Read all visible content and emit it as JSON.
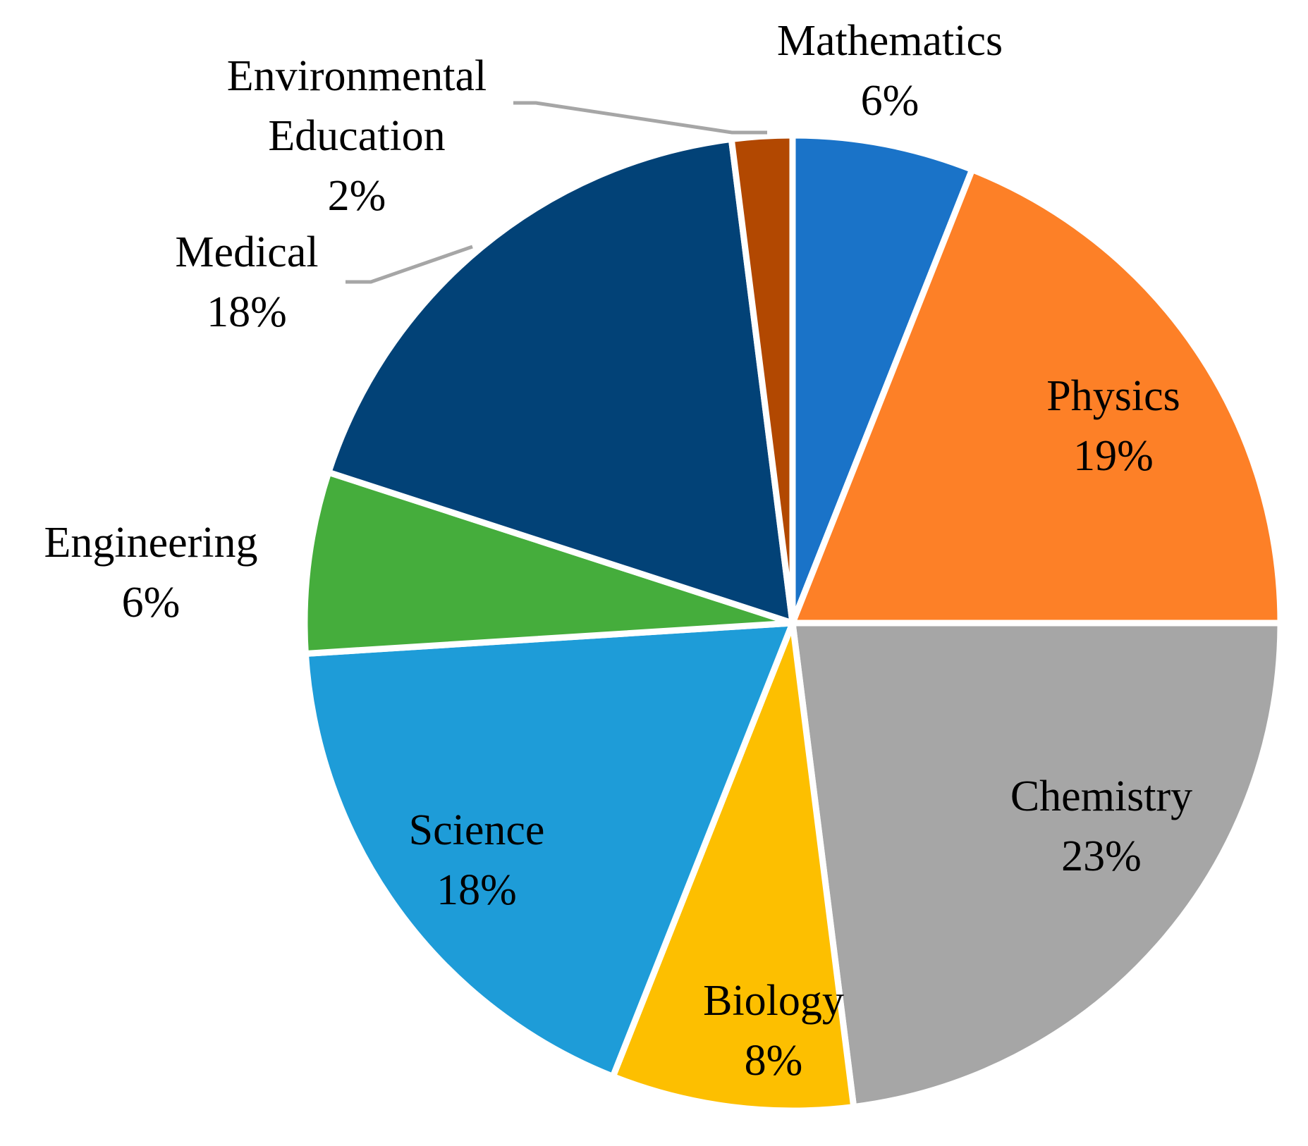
{
  "chart_data": {
    "type": "pie",
    "title": "",
    "start": "top",
    "direction": "clockwise",
    "slices": [
      {
        "label": "Mathematics",
        "value": 6,
        "pct_label": "6%",
        "color": "#1a73c8"
      },
      {
        "label": "Physics",
        "value": 19,
        "pct_label": "19%",
        "color": "#fd8027"
      },
      {
        "label": "Chemistry",
        "value": 23,
        "pct_label": "23%",
        "color": "#a6a6a6"
      },
      {
        "label": "Biology",
        "value": 8,
        "pct_label": "8%",
        "color": "#fdbf00"
      },
      {
        "label": "Science",
        "value": 18,
        "pct_label": "18%",
        "color": "#1e9cd8"
      },
      {
        "label": "Engineering",
        "value": 6,
        "pct_label": "6%",
        "color": "#45ad3c"
      },
      {
        "label": "Medical",
        "value": 18,
        "pct_label": "18%",
        "color": "#024277"
      },
      {
        "label": "Environmental Education",
        "value": 2,
        "pct_label": "2%",
        "color": "#b24801"
      }
    ],
    "leader_line_color": "#a6a6a6",
    "slice_border_color": "#ffffff"
  }
}
